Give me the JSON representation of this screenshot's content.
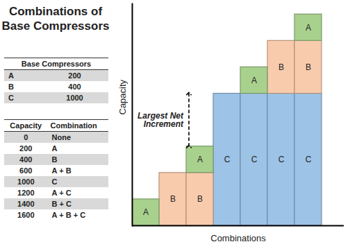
{
  "side_panel": {
    "title": "Combinations of Base Compressors",
    "base_table": {
      "header": "Base Compressors",
      "rows": [
        [
          "A",
          200
        ],
        [
          "B",
          400
        ],
        [
          "C",
          1000
        ]
      ]
    },
    "combination_table": {
      "columns": [
        "Capacity",
        "Combination"
      ],
      "rows": [
        [
          0,
          "None"
        ],
        [
          200,
          "A"
        ],
        [
          400,
          "B"
        ],
        [
          600,
          "A + B"
        ],
        [
          1000,
          "C"
        ],
        [
          1200,
          "A + C"
        ],
        [
          1400,
          "B + C"
        ],
        [
          1600,
          "A + B + C"
        ]
      ]
    }
  },
  "chart_data": {
    "type": "bar",
    "stacked": true,
    "x_label": "Combinations",
    "y_label": "Capacity",
    "categories": [
      null,
      null,
      null,
      null,
      null,
      null,
      null
    ],
    "series": [
      {
        "name": "C",
        "color": "#9dc3e6",
        "values": [
          null,
          null,
          null,
          1000,
          1000,
          1000,
          1000
        ]
      },
      {
        "name": "B",
        "color": "#f8cbad",
        "values": [
          null,
          400,
          400,
          null,
          null,
          400,
          400
        ]
      },
      {
        "name": "A",
        "color": "#a9d18e",
        "values": [
          200,
          null,
          200,
          null,
          200,
          null,
          200
        ]
      }
    ],
    "ylim": [
      0,
      1680
    ],
    "yticks": [],
    "tick_labels": false,
    "grid": false,
    "annotations": [
      {
        "text": "Largest Net Increment",
        "category_index": 2,
        "y1": 600,
        "y2": 1000
      }
    ]
  }
}
